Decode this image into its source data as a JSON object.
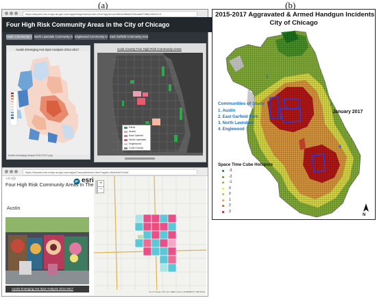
{
  "labels": {
    "a": "(a)",
    "b": "(b)"
  },
  "storymap_top": {
    "url": "https://depaul-edu.maps.arcgis.com/apps/MapSeries/index.html?appid=a1b9b0c9f6a6401fbaad0798b2d904213",
    "title": "Four High Risk Community Areas in the City of Chicago",
    "tabs": [
      {
        "label": "Austin Community Area",
        "active": true
      },
      {
        "label": "North Lawndale Community Area",
        "active": false
      },
      {
        "label": "Englewood Community Area",
        "active": false
      },
      {
        "label": "East Garfield Community Area",
        "active": false
      }
    ],
    "left_map_title": "Austin Emerging Hot Spot Analysis 2012-2017",
    "left_footer": "Austin-emerging-hotspot-2012-2017.png",
    "right_map_title": "Cook County Four High Risk Community Areas",
    "legend": [
      {
        "label": "Parks",
        "color": "#2ea84a"
      },
      {
        "label": "Austin",
        "color": "#e8a0b4"
      },
      {
        "label": "East Garfield",
        "color": "#f06a8a"
      },
      {
        "label": "North Lawndale",
        "color": "#e85a70"
      },
      {
        "label": "Englewood",
        "color": "#f7b8a0"
      },
      {
        "label": "Cook County",
        "color": "#8a8a8a"
      }
    ]
  },
  "storymap_bottom": {
    "url": "https://depaul-edu.maps.arcgis.com/apps/Cascade/index.html?appid=5ea0e0d7b4d4",
    "header_small": "스토리맵",
    "title": "Four High Risk Community Areas In The City of Chicago",
    "brand": "esri",
    "section_title": "Austin",
    "photo_caption": "Austin Emerging Hot Spot Analysis 2012-2017",
    "map_attribution": "City of Chicago, DoIT, Esri, HERE, Garmin, INCREMENT P, METI/NASA, USGS, EPA, USDA"
  },
  "figure_b": {
    "title_line1": "2015-2017 Aggravated & Armed Handgun Incidents",
    "title_line2": "City of Chicago",
    "communities_heading": "Communities of Study",
    "communities": [
      "1. Austin",
      "2. East Garfield Park",
      "3. North Lawndale",
      "4. Englewood"
    ],
    "date_label": "January 2017",
    "map_numbers": [
      "1",
      "2",
      "3",
      "4"
    ],
    "legend_title": "Space Time Cube Hotspots",
    "legend": [
      {
        "label": "-3",
        "color": "#1f7a1f"
      },
      {
        "label": "-2",
        "color": "#4c9a2a"
      },
      {
        "label": "-1",
        "color": "#8ab83a"
      },
      {
        "label": "0",
        "color": "#e8e84a"
      },
      {
        "label": "0",
        "color": "#c8b84a"
      },
      {
        "label": "1",
        "color": "#e8a040"
      },
      {
        "label": "2",
        "color": "#e04a30"
      },
      {
        "label": "3",
        "color": "#c01818"
      }
    ],
    "north": "N"
  }
}
